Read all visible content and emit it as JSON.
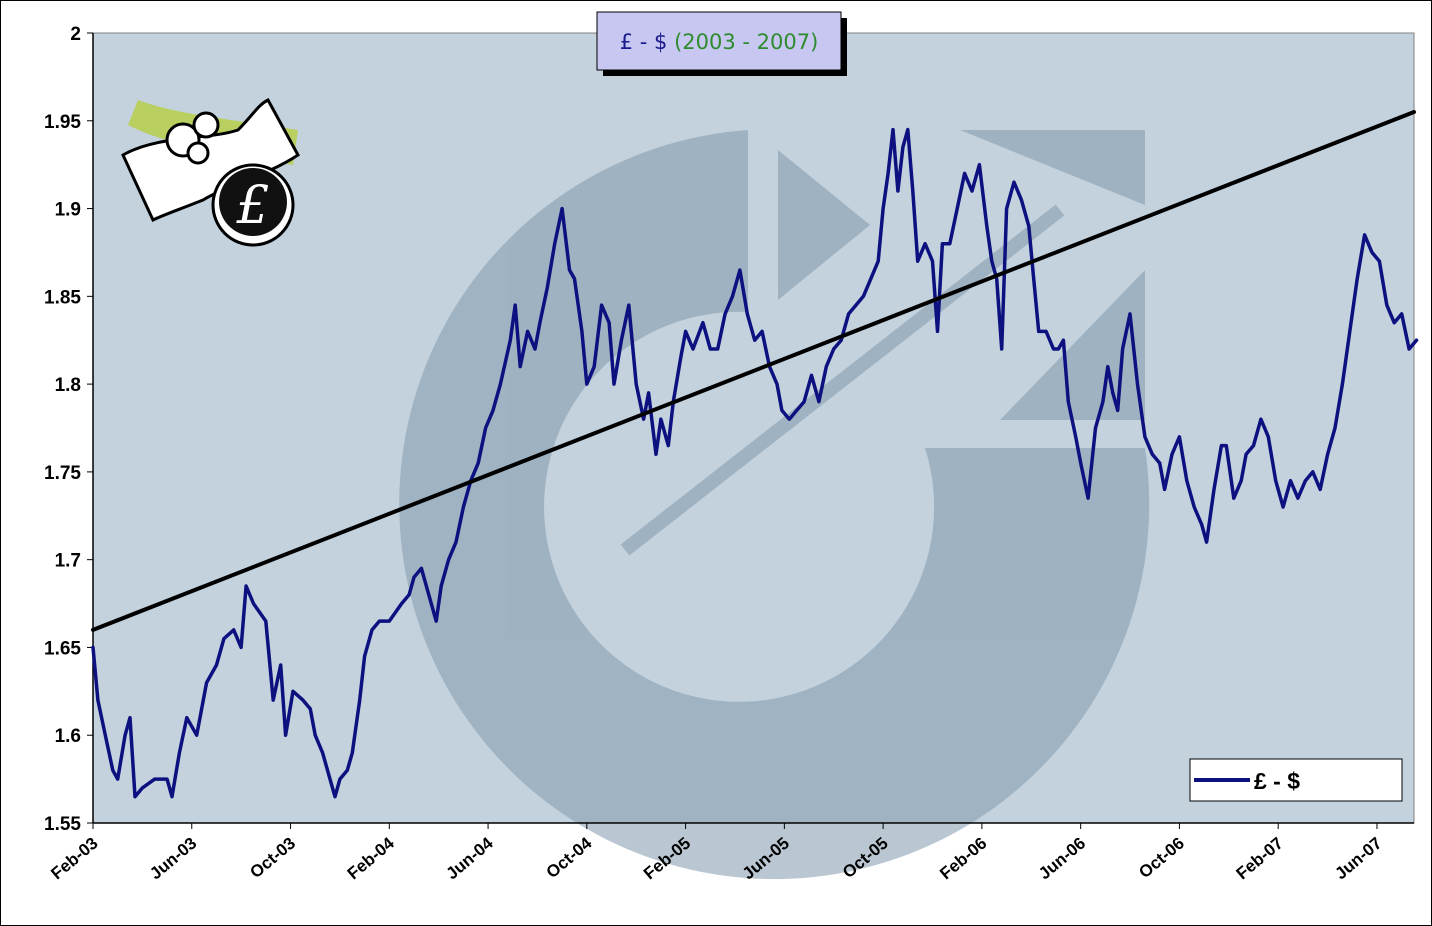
{
  "chart_data": {
    "type": "line",
    "title": {
      "prefix": "£ - $",
      "suffix": "(2003 - 2007)"
    },
    "colors": {
      "title_prefix": "#1a1a8c",
      "title_suffix": "#2e8b2e",
      "series": "#0d1180",
      "trend": "#000000",
      "plot_bg": "#c4d2dd",
      "watermark": "#8299ad",
      "title_box": "#c7c7f2"
    },
    "y_axis": {
      "ticks": [
        "2",
        "1.95",
        "1.9",
        "1.85",
        "1.8",
        "1.75",
        "1.7",
        "1.65",
        "1.6",
        "1.55"
      ],
      "ylim": [
        1.55,
        2.0
      ]
    },
    "x_axis": {
      "ticks": [
        "Feb-03",
        "Jun-03",
        "Oct-03",
        "Feb-04",
        "Jun-04",
        "Oct-04",
        "Feb-05",
        "Jun-05",
        "Oct-05",
        "Feb-06",
        "Jun-06",
        "Oct-06",
        "Feb-07",
        "Jun-07"
      ],
      "xlim_months": [
        0,
        53.5
      ]
    },
    "grid": false,
    "legend": {
      "label": "£ - $",
      "placement": "bottom-right"
    },
    "icons": [
      "pound-money-clipart-icon"
    ],
    "series": [
      {
        "name": "£ - $",
        "kind": "data",
        "points": [
          [
            0.0,
            1.65
          ],
          [
            0.2,
            1.62
          ],
          [
            0.5,
            1.6
          ],
          [
            0.8,
            1.58
          ],
          [
            1.0,
            1.575
          ],
          [
            1.3,
            1.6
          ],
          [
            1.5,
            1.61
          ],
          [
            1.7,
            1.565
          ],
          [
            2.0,
            1.57
          ],
          [
            2.5,
            1.575
          ],
          [
            3.0,
            1.575
          ],
          [
            3.2,
            1.565
          ],
          [
            3.5,
            1.59
          ],
          [
            3.8,
            1.61
          ],
          [
            4.2,
            1.6
          ],
          [
            4.6,
            1.63
          ],
          [
            5.0,
            1.64
          ],
          [
            5.3,
            1.655
          ],
          [
            5.7,
            1.66
          ],
          [
            6.0,
            1.65
          ],
          [
            6.2,
            1.685
          ],
          [
            6.5,
            1.675
          ],
          [
            7.0,
            1.665
          ],
          [
            7.3,
            1.62
          ],
          [
            7.6,
            1.64
          ],
          [
            7.8,
            1.6
          ],
          [
            8.1,
            1.625
          ],
          [
            8.5,
            1.62
          ],
          [
            8.8,
            1.615
          ],
          [
            9.0,
            1.6
          ],
          [
            9.3,
            1.59
          ],
          [
            9.6,
            1.575
          ],
          [
            9.8,
            1.565
          ],
          [
            10.0,
            1.575
          ],
          [
            10.3,
            1.58
          ],
          [
            10.5,
            1.59
          ],
          [
            10.8,
            1.62
          ],
          [
            11.0,
            1.645
          ],
          [
            11.3,
            1.66
          ],
          [
            11.6,
            1.665
          ],
          [
            12.0,
            1.665
          ],
          [
            12.5,
            1.675
          ],
          [
            12.8,
            1.68
          ],
          [
            13.0,
            1.69
          ],
          [
            13.3,
            1.695
          ],
          [
            13.6,
            1.68
          ],
          [
            13.9,
            1.665
          ],
          [
            14.1,
            1.685
          ],
          [
            14.4,
            1.7
          ],
          [
            14.7,
            1.71
          ],
          [
            15.0,
            1.73
          ],
          [
            15.3,
            1.745
          ],
          [
            15.6,
            1.755
          ],
          [
            15.9,
            1.775
          ],
          [
            16.2,
            1.785
          ],
          [
            16.5,
            1.8
          ],
          [
            16.9,
            1.825
          ],
          [
            17.1,
            1.845
          ],
          [
            17.3,
            1.81
          ],
          [
            17.6,
            1.83
          ],
          [
            17.9,
            1.82
          ],
          [
            18.1,
            1.835
          ],
          [
            18.4,
            1.855
          ],
          [
            18.7,
            1.88
          ],
          [
            19.0,
            1.9
          ],
          [
            19.3,
            1.865
          ],
          [
            19.5,
            1.86
          ],
          [
            19.8,
            1.83
          ],
          [
            20.0,
            1.8
          ],
          [
            20.3,
            1.81
          ],
          [
            20.6,
            1.845
          ],
          [
            20.9,
            1.835
          ],
          [
            21.1,
            1.8
          ],
          [
            21.4,
            1.825
          ],
          [
            21.7,
            1.845
          ],
          [
            22.0,
            1.8
          ],
          [
            22.3,
            1.78
          ],
          [
            22.5,
            1.795
          ],
          [
            22.8,
            1.76
          ],
          [
            23.0,
            1.78
          ],
          [
            23.3,
            1.765
          ],
          [
            23.5,
            1.79
          ],
          [
            23.8,
            1.815
          ],
          [
            24.0,
            1.83
          ],
          [
            24.3,
            1.82
          ],
          [
            24.7,
            1.835
          ],
          [
            25.0,
            1.82
          ],
          [
            25.3,
            1.82
          ],
          [
            25.6,
            1.84
          ],
          [
            25.9,
            1.85
          ],
          [
            26.2,
            1.865
          ],
          [
            26.5,
            1.84
          ],
          [
            26.8,
            1.825
          ],
          [
            27.1,
            1.83
          ],
          [
            27.4,
            1.81
          ],
          [
            27.7,
            1.8
          ],
          [
            27.9,
            1.785
          ],
          [
            28.2,
            1.78
          ],
          [
            28.5,
            1.785
          ],
          [
            28.8,
            1.79
          ],
          [
            29.1,
            1.805
          ],
          [
            29.4,
            1.79
          ],
          [
            29.7,
            1.81
          ],
          [
            30.0,
            1.82
          ],
          [
            30.3,
            1.825
          ],
          [
            30.6,
            1.84
          ],
          [
            30.9,
            1.845
          ],
          [
            31.2,
            1.85
          ],
          [
            31.5,
            1.86
          ],
          [
            31.8,
            1.87
          ],
          [
            32.0,
            1.9
          ],
          [
            32.2,
            1.92
          ],
          [
            32.4,
            1.945
          ],
          [
            32.6,
            1.91
          ],
          [
            32.8,
            1.935
          ],
          [
            33.0,
            1.945
          ],
          [
            33.2,
            1.91
          ],
          [
            33.4,
            1.87
          ],
          [
            33.7,
            1.88
          ],
          [
            34.0,
            1.87
          ],
          [
            34.2,
            1.83
          ],
          [
            34.4,
            1.88
          ],
          [
            34.7,
            1.88
          ],
          [
            35.0,
            1.9
          ],
          [
            35.3,
            1.92
          ],
          [
            35.6,
            1.91
          ],
          [
            35.9,
            1.925
          ],
          [
            36.2,
            1.89
          ],
          [
            36.4,
            1.87
          ],
          [
            36.6,
            1.86
          ],
          [
            36.8,
            1.82
          ],
          [
            37.0,
            1.9
          ],
          [
            37.3,
            1.915
          ],
          [
            37.6,
            1.905
          ],
          [
            37.9,
            1.89
          ],
          [
            38.1,
            1.86
          ],
          [
            38.3,
            1.83
          ],
          [
            38.6,
            1.83
          ],
          [
            38.9,
            1.82
          ],
          [
            39.1,
            1.82
          ],
          [
            39.3,
            1.825
          ],
          [
            39.5,
            1.79
          ],
          [
            39.8,
            1.77
          ],
          [
            40.0,
            1.755
          ],
          [
            40.3,
            1.735
          ],
          [
            40.6,
            1.775
          ],
          [
            40.9,
            1.79
          ],
          [
            41.1,
            1.81
          ],
          [
            41.3,
            1.795
          ],
          [
            41.5,
            1.785
          ],
          [
            41.7,
            1.82
          ],
          [
            42.0,
            1.84
          ],
          [
            42.3,
            1.8
          ],
          [
            42.6,
            1.77
          ],
          [
            42.9,
            1.76
          ],
          [
            43.2,
            1.755
          ],
          [
            43.4,
            1.74
          ],
          [
            43.7,
            1.76
          ],
          [
            44.0,
            1.77
          ],
          [
            44.3,
            1.745
          ],
          [
            44.6,
            1.73
          ],
          [
            44.9,
            1.72
          ],
          [
            45.1,
            1.71
          ],
          [
            45.4,
            1.74
          ],
          [
            45.7,
            1.765
          ],
          [
            45.9,
            1.765
          ],
          [
            46.2,
            1.735
          ],
          [
            46.5,
            1.745
          ],
          [
            46.7,
            1.76
          ],
          [
            47.0,
            1.765
          ],
          [
            47.3,
            1.78
          ],
          [
            47.6,
            1.77
          ],
          [
            47.9,
            1.745
          ],
          [
            48.2,
            1.73
          ],
          [
            48.5,
            1.745
          ],
          [
            48.8,
            1.735
          ],
          [
            49.1,
            1.745
          ],
          [
            49.4,
            1.75
          ],
          [
            49.7,
            1.74
          ],
          [
            50.0,
            1.76
          ],
          [
            50.3,
            1.775
          ],
          [
            50.6,
            1.8
          ],
          [
            50.9,
            1.83
          ],
          [
            51.2,
            1.86
          ],
          [
            51.5,
            1.885
          ],
          [
            51.8,
            1.875
          ],
          [
            52.1,
            1.87
          ],
          [
            52.4,
            1.845
          ],
          [
            52.7,
            1.835
          ],
          [
            53.0,
            1.84
          ],
          [
            53.3,
            1.82
          ],
          [
            53.6,
            1.825
          ]
        ]
      },
      {
        "name": "trend",
        "kind": "trend",
        "points": [
          [
            0.0,
            1.66
          ],
          [
            53.5,
            1.955
          ]
        ]
      }
    ]
  }
}
